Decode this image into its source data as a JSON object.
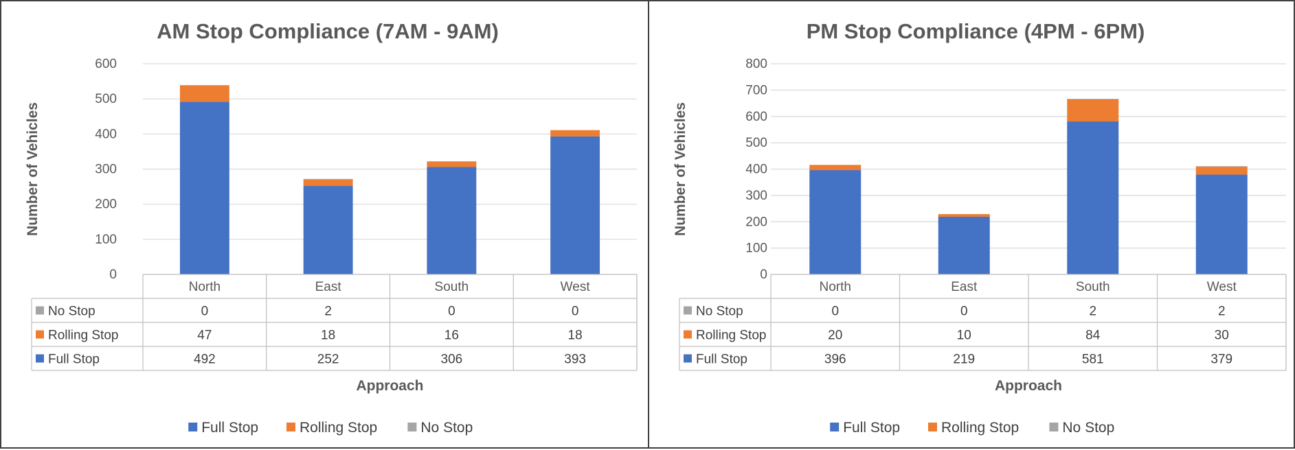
{
  "chart_data": [
    {
      "type": "bar",
      "stacked": true,
      "title": "AM Stop Compliance (7AM - 9AM)",
      "xlabel": "Approach",
      "ylabel": "Number of Vehicles",
      "ylim": [
        0,
        600
      ],
      "yticks": [
        0,
        100,
        200,
        300,
        400,
        500,
        600
      ],
      "categories": [
        "North",
        "East",
        "South",
        "West"
      ],
      "series": [
        {
          "name": "Full Stop",
          "values": [
            492,
            252,
            306,
            393
          ],
          "color": "#4472c4"
        },
        {
          "name": "Rolling Stop",
          "values": [
            47,
            18,
            16,
            18
          ],
          "color": "#ed7d31"
        },
        {
          "name": "No Stop",
          "values": [
            0,
            2,
            0,
            0
          ],
          "color": "#a5a5a5"
        }
      ],
      "table_rows": [
        "No Stop",
        "Rolling Stop",
        "Full Stop"
      ],
      "legend": [
        "Full Stop",
        "Rolling Stop",
        "No Stop"
      ],
      "legend_position": "bottom",
      "grid": true
    },
    {
      "type": "bar",
      "stacked": true,
      "title": "PM Stop Compliance (4PM - 6PM)",
      "xlabel": "Approach",
      "ylabel": "Number of Vehicles",
      "ylim": [
        0,
        800
      ],
      "yticks": [
        0,
        100,
        200,
        300,
        400,
        500,
        600,
        700,
        800
      ],
      "categories": [
        "North",
        "East",
        "South",
        "West"
      ],
      "series": [
        {
          "name": "Full Stop",
          "values": [
            396,
            219,
            581,
            379
          ],
          "color": "#4472c4"
        },
        {
          "name": "Rolling Stop",
          "values": [
            20,
            10,
            84,
            30
          ],
          "color": "#ed7d31"
        },
        {
          "name": "No Stop",
          "values": [
            0,
            0,
            2,
            2
          ],
          "color": "#a5a5a5"
        }
      ],
      "table_rows": [
        "No Stop",
        "Rolling Stop",
        "Full Stop"
      ],
      "legend": [
        "Full Stop",
        "Rolling Stop",
        "No Stop"
      ],
      "legend_position": "bottom",
      "grid": true
    }
  ]
}
